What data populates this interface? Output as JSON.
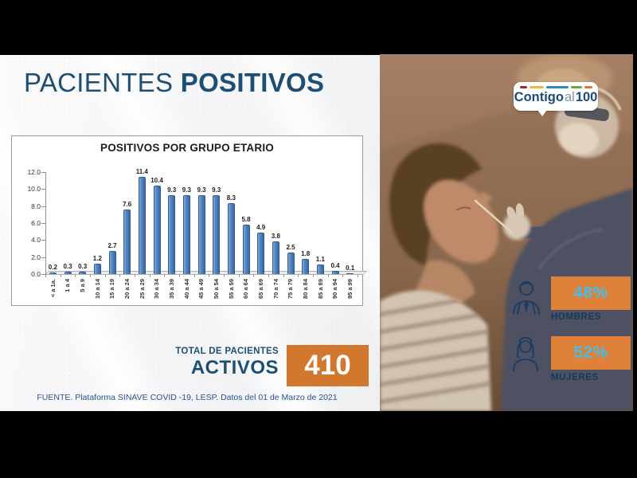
{
  "slide": {
    "title": {
      "regular": "PACIENTES",
      "bold": "POSITIVOS"
    },
    "total": {
      "line1": "TOTAL DE PACIENTES",
      "line2": "ACTIVOS",
      "value": "410"
    },
    "source": "FUENTE. Plataforma SINAVE COVID -19, LESP. Datos del 01 de Marzo de 2021"
  },
  "chart_data": {
    "type": "bar",
    "title": "POSITIVOS POR GRUPO ETARIO",
    "categories": [
      "< a 1a.",
      "1 a 4",
      "5 a 9",
      "10 a 14",
      "15 a 19",
      "20 a 24",
      "25 a 29",
      "30 a 34",
      "35 a 39",
      "40 a 44",
      "45 a 49",
      "50 a 54",
      "55 a 59",
      "60 a 64",
      "65 a 69",
      "70 a 74",
      "75 a 79",
      "80 a 84",
      "85 a 89",
      "90 a 94",
      "95 a 99"
    ],
    "values": [
      0.2,
      0.3,
      0.3,
      1.2,
      2.7,
      7.6,
      11.4,
      10.4,
      9.3,
      9.3,
      9.3,
      9.3,
      8.3,
      5.8,
      4.9,
      3.8,
      2.5,
      1.8,
      1.1,
      0.4,
      0.1
    ],
    "xlabel": "",
    "ylabel": "",
    "ylim": [
      0,
      12
    ],
    "yticks": [
      "12.0",
      "10.0",
      "8.0",
      "6.0",
      "4.0",
      "2.0",
      "0.0"
    ],
    "grid": false,
    "legend": false,
    "value_labels": true,
    "bar_color": "#4f81bd"
  },
  "photo_panel": {
    "logo": {
      "contigo": "Contigo",
      "al": "al",
      "num": "100"
    },
    "stats": [
      {
        "value": "48%",
        "label": "HOMBRES",
        "icon": "man-icon"
      },
      {
        "value": "52%",
        "label": "MUJERES",
        "icon": "woman-icon"
      }
    ]
  },
  "colors": {
    "title_navy": "#1d4e74",
    "bar_blue": "#4f81bd",
    "accent_orange": "#d2772e",
    "stat_orange": "#e0813a",
    "stat_cyan": "#45bee8",
    "label_navy": "#14395f",
    "source_blue": "#27548e"
  }
}
